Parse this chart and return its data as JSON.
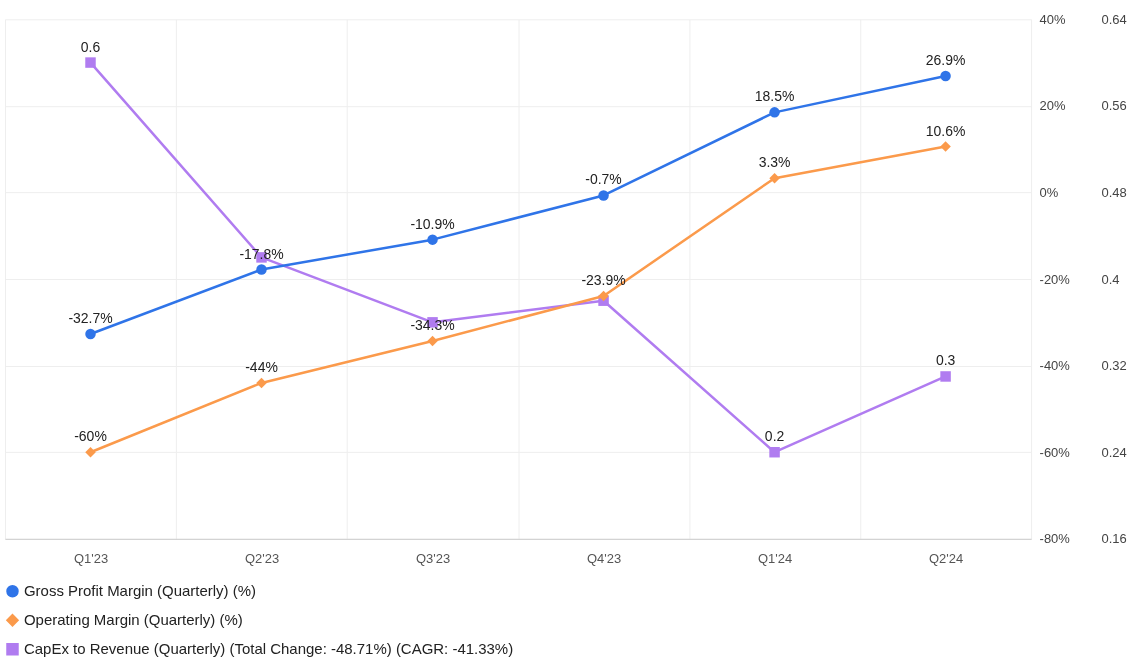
{
  "chart_data": {
    "type": "line",
    "categories": [
      "Q1'23",
      "Q2'23",
      "Q3'23",
      "Q4'23",
      "Q1'24",
      "Q2'24"
    ],
    "series": [
      {
        "name": "Gross Profit Margin (Quarterly) (%)",
        "color": "#2f74e8",
        "marker": "circle",
        "values": [
          -32.7,
          -17.8,
          -10.9,
          -0.7,
          18.5,
          26.9
        ],
        "value_labels": [
          "-32.7%",
          "-17.8%",
          "-10.9%",
          "-0.7%",
          "18.5%",
          "26.9%"
        ]
      },
      {
        "name": "Operating Margin (Quarterly) (%)",
        "color": "#fb9a4b",
        "marker": "diamond",
        "values": [
          -60,
          -44,
          -34.3,
          -23.9,
          3.3,
          10.6
        ],
        "value_labels": [
          "-60%",
          "-44%",
          "-34.3%",
          "-23.9%",
          "3.3%",
          "10.6%"
        ]
      },
      {
        "name": "CapEx to Revenue (Quarterly) (Total Change: -48.71%) (CAGR: -41.33%)",
        "color": "#b07cf0",
        "marker": "square",
        "axis": "y2",
        "values": [
          0.6,
          0.42,
          0.36,
          0.38,
          0.24,
          0.31
        ],
        "value_labels": [
          "0.6",
          null,
          null,
          null,
          "0.2",
          "0.3"
        ]
      }
    ],
    "ylim": [
      -80,
      40
    ],
    "yticks": [
      {
        "value": -80,
        "label": "-80%"
      },
      {
        "value": -60,
        "label": "-60%"
      },
      {
        "value": -40,
        "label": "-40%"
      },
      {
        "value": -20,
        "label": "-20%"
      },
      {
        "value": 0,
        "label": "0%"
      },
      {
        "value": 20,
        "label": "20%"
      },
      {
        "value": 40,
        "label": "40%"
      }
    ],
    "y2lim": [
      0.16,
      0.64
    ],
    "y2ticks": [
      0.16,
      0.24,
      0.32,
      0.4,
      0.48,
      0.56,
      0.64
    ],
    "grid": true,
    "legend": "bottom"
  }
}
